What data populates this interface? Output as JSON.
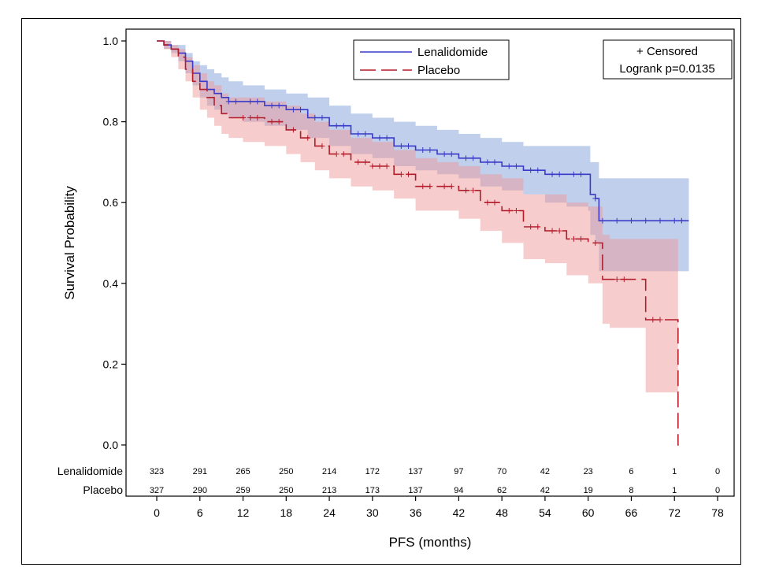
{
  "chart_data": {
    "type": "line",
    "subtype": "kaplan-meier",
    "xlabel": "PFS (months)",
    "ylabel": "Survival Probability",
    "xlim": [
      0,
      78
    ],
    "ylim": [
      0,
      1.0
    ],
    "x_ticks": [
      0,
      6,
      12,
      18,
      24,
      30,
      36,
      42,
      48,
      54,
      60,
      66,
      72,
      78
    ],
    "y_ticks": [
      0.0,
      0.2,
      0.4,
      0.6,
      0.8,
      1.0
    ],
    "x_tick_labels": [
      "0",
      "6",
      "12",
      "18",
      "24",
      "30",
      "36",
      "42",
      "48",
      "54",
      "60",
      "66",
      "72",
      "78"
    ],
    "y_tick_labels": [
      "0.0",
      "0.2",
      "0.4",
      "0.6",
      "0.8",
      "1.0"
    ],
    "grid": false,
    "legend": {
      "placement": "top-center",
      "entries": [
        {
          "label": "Lenalidomide",
          "style": "solid",
          "color": "#3a3ac8"
        },
        {
          "label": "Placebo",
          "style": "dashed",
          "color": "#b31d2b"
        }
      ]
    },
    "annotation_box": {
      "placement": "top-right",
      "lines": [
        "+ Censored",
        "Logrank p=0.0135"
      ]
    },
    "series": [
      {
        "name": "Lenalidomide",
        "color": "#3a3ac8",
        "band_color": "#7f9fd9",
        "x": [
          0,
          1,
          2,
          3,
          4,
          5,
          6,
          7,
          8,
          9,
          10,
          12,
          15,
          18,
          21,
          24,
          27,
          30,
          33,
          36,
          39,
          42,
          45,
          48,
          51,
          54,
          57,
          60,
          60.3,
          61,
          61.5,
          74
        ],
        "y": [
          1.0,
          0.99,
          0.98,
          0.97,
          0.95,
          0.92,
          0.9,
          0.88,
          0.87,
          0.86,
          0.85,
          0.85,
          0.84,
          0.83,
          0.81,
          0.79,
          0.77,
          0.76,
          0.74,
          0.73,
          0.72,
          0.71,
          0.7,
          0.69,
          0.68,
          0.67,
          0.67,
          0.67,
          0.62,
          0.61,
          0.555,
          0.555
        ],
        "ci_lower": [
          1.0,
          0.98,
          0.97,
          0.95,
          0.92,
          0.89,
          0.86,
          0.84,
          0.83,
          0.82,
          0.81,
          0.8,
          0.79,
          0.78,
          0.76,
          0.74,
          0.72,
          0.71,
          0.69,
          0.68,
          0.67,
          0.66,
          0.64,
          0.63,
          0.62,
          0.6,
          0.59,
          0.58,
          0.52,
          0.5,
          0.43,
          0.43
        ],
        "ci_upper": [
          1.0,
          1.0,
          0.99,
          0.99,
          0.97,
          0.95,
          0.94,
          0.93,
          0.92,
          0.91,
          0.9,
          0.89,
          0.88,
          0.87,
          0.86,
          0.84,
          0.82,
          0.81,
          0.8,
          0.79,
          0.78,
          0.77,
          0.76,
          0.75,
          0.74,
          0.74,
          0.74,
          0.74,
          0.7,
          0.7,
          0.66,
          0.66
        ],
        "censored_x": [
          10,
          11,
          13,
          14,
          16,
          17,
          19,
          20,
          22,
          23,
          25,
          26,
          28,
          29,
          31,
          32,
          34,
          35,
          37,
          38,
          40,
          41,
          43,
          44,
          46,
          47,
          49,
          50,
          52,
          53,
          55,
          56,
          58,
          59,
          61,
          62,
          64,
          66,
          68,
          70,
          72,
          73
        ]
      },
      {
        "name": "Placebo",
        "color": "#b31d2b",
        "band_color": "#ee9a9a",
        "x": [
          0,
          1,
          2,
          3,
          4,
          5,
          6,
          7,
          8,
          9,
          10,
          11,
          12,
          15,
          18,
          20,
          22,
          24,
          27,
          30,
          33,
          36,
          39,
          42,
          45,
          48,
          51,
          54,
          57,
          60,
          62,
          63,
          66,
          68,
          72,
          72.5,
          72.6
        ],
        "y": [
          1.0,
          0.99,
          0.98,
          0.96,
          0.93,
          0.9,
          0.88,
          0.86,
          0.84,
          0.82,
          0.81,
          0.81,
          0.81,
          0.8,
          0.78,
          0.76,
          0.74,
          0.72,
          0.7,
          0.69,
          0.67,
          0.64,
          0.64,
          0.63,
          0.6,
          0.58,
          0.54,
          0.53,
          0.51,
          0.5,
          0.41,
          0.41,
          0.41,
          0.31,
          0.31,
          0.0,
          0.0
        ],
        "ci_lower": [
          1.0,
          0.98,
          0.96,
          0.93,
          0.9,
          0.86,
          0.83,
          0.81,
          0.79,
          0.77,
          0.76,
          0.76,
          0.75,
          0.74,
          0.72,
          0.7,
          0.68,
          0.66,
          0.64,
          0.63,
          0.61,
          0.58,
          0.58,
          0.56,
          0.53,
          0.5,
          0.46,
          0.45,
          0.42,
          0.4,
          0.3,
          0.29,
          0.29,
          0.13,
          0.13,
          0.0,
          0.0
        ],
        "ci_upper": [
          1.0,
          1.0,
          0.99,
          0.98,
          0.96,
          0.94,
          0.92,
          0.9,
          0.89,
          0.87,
          0.86,
          0.86,
          0.86,
          0.85,
          0.84,
          0.82,
          0.8,
          0.78,
          0.76,
          0.75,
          0.73,
          0.71,
          0.7,
          0.69,
          0.67,
          0.66,
          0.62,
          0.62,
          0.6,
          0.59,
          0.52,
          0.51,
          0.51,
          0.51,
          0.51,
          0.0,
          0.0
        ],
        "censored_x": [
          12,
          13,
          14,
          16,
          17,
          19,
          21,
          23,
          25,
          26,
          28,
          29,
          30,
          31,
          32,
          34,
          35,
          37,
          38,
          40,
          41,
          43,
          44,
          46,
          47,
          49,
          50,
          52,
          53,
          55,
          56,
          58,
          59,
          61,
          64,
          65,
          69,
          70
        ]
      }
    ],
    "risk_table": {
      "times": [
        0,
        6,
        12,
        18,
        24,
        30,
        36,
        42,
        48,
        54,
        60,
        66,
        72,
        78
      ],
      "rows": [
        {
          "label": "Lenalidomide",
          "values": [
            "323",
            "291",
            "265",
            "250",
            "214",
            "172",
            "137",
            "97",
            "70",
            "42",
            "23",
            "6",
            "1",
            "0"
          ]
        },
        {
          "label": "Placebo",
          "values": [
            "327",
            "290",
            "259",
            "250",
            "213",
            "173",
            "137",
            "94",
            "62",
            "42",
            "19",
            "8",
            "1",
            "0"
          ]
        }
      ]
    }
  }
}
